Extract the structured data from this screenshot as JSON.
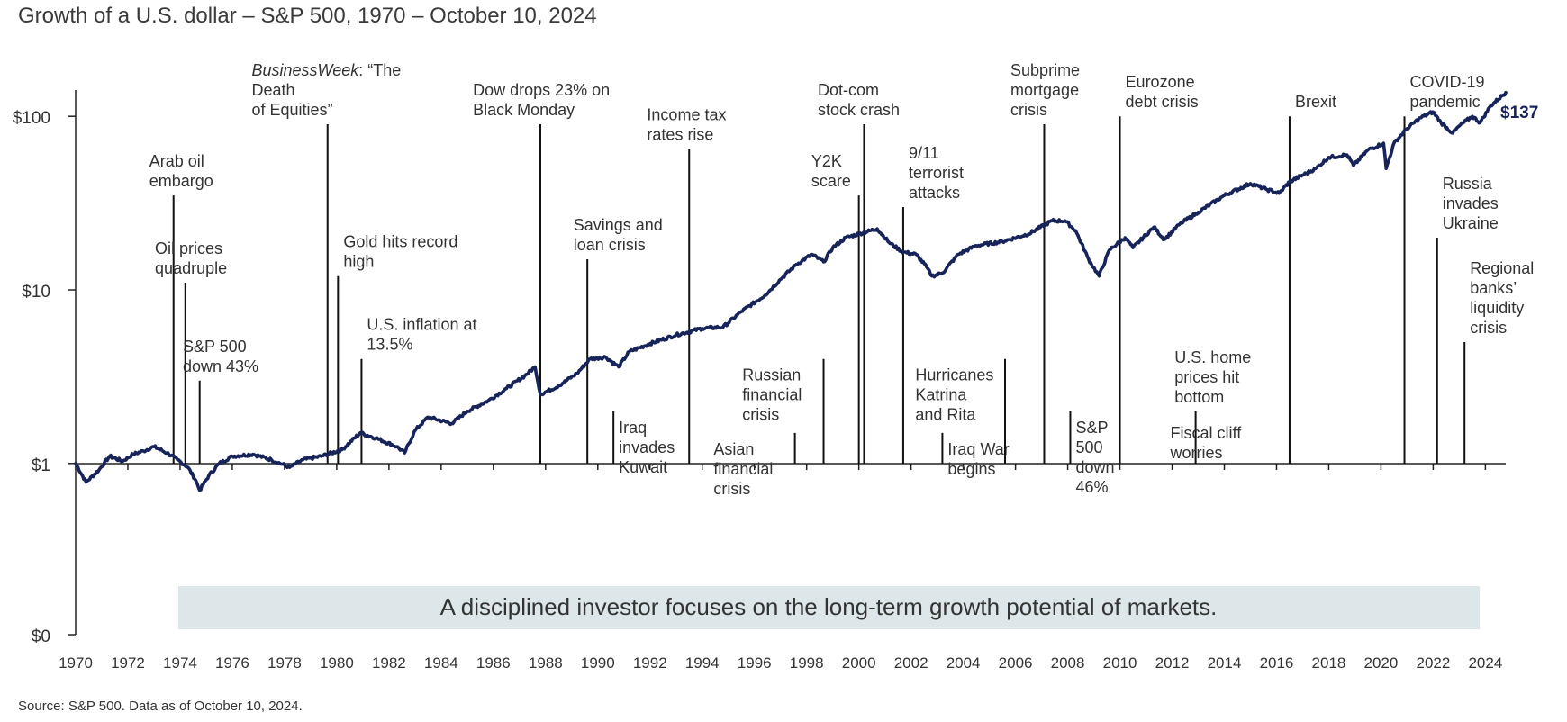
{
  "title": "Growth of a U.S. dollar –  S&P 500, 1970 – October 10, 2024",
  "source": "Source: S&P 500. Data as of October 10, 2024.",
  "colors": {
    "line": "#17245a",
    "axis": "#222222",
    "banner_bg": "#dde6e9",
    "text": "#333333"
  },
  "chart_data": {
    "type": "line",
    "title": "Growth of a U.S. dollar –  S&P 500, 1970 – October 10, 2024",
    "xlabel": "",
    "ylabel": "",
    "y_scale": "log",
    "xlim": [
      1970,
      2024.78
    ],
    "y_tick_labels": [
      {
        "value": 100,
        "label": "$100"
      },
      {
        "value": 10,
        "label": "$10"
      },
      {
        "value": 1,
        "label": "$1"
      },
      {
        "value": 0.1,
        "label": "$0"
      }
    ],
    "x_tick_labels": [
      "1970",
      "1972",
      "1974",
      "1976",
      "1978",
      "1980",
      "1982",
      "1984",
      "1986",
      "1988",
      "1990",
      "1992",
      "1994",
      "1996",
      "1998",
      "2000",
      "2002",
      "2004",
      "2006",
      "2008",
      "2010",
      "2012",
      "2014",
      "2016",
      "2018",
      "2020",
      "2022",
      "2024"
    ],
    "grid": false,
    "legend": "none",
    "end_label": "$137",
    "banner": "A disciplined investor focuses on the long-term growth potential of markets.",
    "series": [
      {
        "values": [
          [
            1970.0,
            1.0
          ],
          [
            1970.4,
            0.78
          ],
          [
            1970.9,
            0.92
          ],
          [
            1971.3,
            1.1
          ],
          [
            1971.8,
            1.03
          ],
          [
            1972.2,
            1.13
          ],
          [
            1972.6,
            1.18
          ],
          [
            1973.0,
            1.25
          ],
          [
            1973.5,
            1.15
          ],
          [
            1973.9,
            1.05
          ],
          [
            1974.3,
            0.95
          ],
          [
            1974.6,
            0.8
          ],
          [
            1974.75,
            0.7
          ],
          [
            1975.1,
            0.85
          ],
          [
            1975.5,
            1.0
          ],
          [
            1976.0,
            1.1
          ],
          [
            1976.8,
            1.13
          ],
          [
            1977.5,
            1.05
          ],
          [
            1978.2,
            0.95
          ],
          [
            1978.7,
            1.05
          ],
          [
            1979.4,
            1.1
          ],
          [
            1980.2,
            1.2
          ],
          [
            1980.9,
            1.5
          ],
          [
            1981.5,
            1.4
          ],
          [
            1982.3,
            1.25
          ],
          [
            1982.6,
            1.15
          ],
          [
            1983.0,
            1.55
          ],
          [
            1983.5,
            1.85
          ],
          [
            1984.4,
            1.7
          ],
          [
            1985.0,
            2.0
          ],
          [
            1985.8,
            2.3
          ],
          [
            1986.5,
            2.7
          ],
          [
            1987.2,
            3.2
          ],
          [
            1987.6,
            3.6
          ],
          [
            1987.8,
            2.5
          ],
          [
            1988.5,
            2.8
          ],
          [
            1989.2,
            3.3
          ],
          [
            1989.7,
            4.0
          ],
          [
            1990.3,
            4.1
          ],
          [
            1990.8,
            3.6
          ],
          [
            1991.2,
            4.4
          ],
          [
            1992.0,
            4.9
          ],
          [
            1993.0,
            5.5
          ],
          [
            1994.0,
            6.0
          ],
          [
            1994.8,
            6.1
          ],
          [
            1995.5,
            7.5
          ],
          [
            1996.4,
            9.3
          ],
          [
            1997.0,
            11.5
          ],
          [
            1997.6,
            14.0
          ],
          [
            1998.2,
            16.0
          ],
          [
            1998.65,
            14.5
          ],
          [
            1999.0,
            17.5
          ],
          [
            1999.5,
            20.0
          ],
          [
            2000.0,
            21.0
          ],
          [
            2000.7,
            22.5
          ],
          [
            2001.2,
            18.5
          ],
          [
            2001.7,
            16.5
          ],
          [
            2002.2,
            16.0
          ],
          [
            2002.6,
            13.5
          ],
          [
            2002.8,
            12.0
          ],
          [
            2003.2,
            12.5
          ],
          [
            2003.8,
            16.0
          ],
          [
            2004.5,
            18.0
          ],
          [
            2005.5,
            19.0
          ],
          [
            2006.5,
            21.0
          ],
          [
            2007.4,
            25.0
          ],
          [
            2007.9,
            25.0
          ],
          [
            2008.3,
            22.0
          ],
          [
            2008.8,
            15.0
          ],
          [
            2009.2,
            12.0
          ],
          [
            2009.6,
            17.0
          ],
          [
            2010.2,
            20.0
          ],
          [
            2010.5,
            17.5
          ],
          [
            2011.3,
            23.0
          ],
          [
            2011.7,
            19.5
          ],
          [
            2012.3,
            24.0
          ],
          [
            2013.0,
            28.0
          ],
          [
            2014.0,
            35.0
          ],
          [
            2015.0,
            41.0
          ],
          [
            2015.6,
            38.0
          ],
          [
            2016.1,
            36.0
          ],
          [
            2016.5,
            42.0
          ],
          [
            2017.5,
            50.0
          ],
          [
            2018.0,
            58.0
          ],
          [
            2018.7,
            60.0
          ],
          [
            2018.95,
            52.0
          ],
          [
            2019.5,
            64.0
          ],
          [
            2020.1,
            70.0
          ],
          [
            2020.2,
            50.0
          ],
          [
            2020.5,
            70.0
          ],
          [
            2021.0,
            85.0
          ],
          [
            2021.5,
            98.0
          ],
          [
            2021.99,
            106.0
          ],
          [
            2022.3,
            92.0
          ],
          [
            2022.75,
            80.0
          ],
          [
            2023.0,
            88.0
          ],
          [
            2023.5,
            100.0
          ],
          [
            2023.8,
            92.0
          ],
          [
            2024.2,
            115.0
          ],
          [
            2024.78,
            137.0
          ]
        ]
      }
    ],
    "events": [
      {
        "year": 1973.75,
        "label_lines": [
          "Arab oil",
          "embargo"
        ],
        "pos": "above",
        "text_pct": 0.36,
        "top": 35
      },
      {
        "year": 1974.2,
        "label_lines": [
          "Oil prices",
          "quadruple"
        ],
        "pos": "above",
        "text_pct": 0.36,
        "top": 11
      },
      {
        "year": 1974.75,
        "label_lines": [
          "S&P 500",
          "down 43%"
        ],
        "pos": "above",
        "text_pct": 0.25,
        "top": 3
      },
      {
        "year": 1979.65,
        "label_lines": [
          "BusinessWeek: “The",
          "Death",
          "of Equities”"
        ],
        "pos": "above",
        "text_pct": 0.5,
        "top": 90,
        "italic_prefix": "BusinessWeek"
      },
      {
        "year": 1980.05,
        "label_lines": [
          "Gold hits record",
          "high"
        ],
        "pos": "above",
        "text_pct": 0.0,
        "top": 12
      },
      {
        "year": 1980.95,
        "label_lines": [
          "U.S. inflation at",
          "13.5%"
        ],
        "pos": "above",
        "text_pct": 0.0,
        "top": 4
      },
      {
        "year": 1987.8,
        "label_lines": [
          "Dow drops 23% on",
          "Black Monday"
        ],
        "pos": "above",
        "text_pct": 0.5,
        "top": 90
      },
      {
        "year": 1989.6,
        "label_lines": [
          "Savings and",
          "loan crisis"
        ],
        "pos": "above",
        "text_pct": 0.15,
        "top": 15
      },
      {
        "year": 1990.6,
        "label_lines": [
          "Iraq",
          "invades",
          "Kuwait"
        ],
        "pos": "below",
        "text_pct": 0.0,
        "top": 2
      },
      {
        "year": 1993.5,
        "label_lines": [
          "Income tax",
          "rates rise"
        ],
        "pos": "above",
        "text_pct": 0.5,
        "top": 65
      },
      {
        "year": 1997.55,
        "label_lines": [
          "Asian",
          "financial",
          "crisis"
        ],
        "pos": "below",
        "text_pct": 1.0,
        "top": 1.5
      },
      {
        "year": 1998.65,
        "label_lines": [
          "Russian",
          "financial",
          "crisis"
        ],
        "pos": "below",
        "text_pct": 1.0,
        "top": 4
      },
      {
        "year": 2000.0,
        "label_lines": [
          "Y2K",
          "scare"
        ],
        "pos": "above",
        "text_pct": 1.0,
        "top": 35
      },
      {
        "year": 2000.2,
        "label_lines": [
          "Dot-com",
          "stock crash"
        ],
        "pos": "above",
        "text_pct": 0.5,
        "top": 90
      },
      {
        "year": 2001.7,
        "label_lines": [
          "9/11",
          "terrorist",
          "attacks"
        ],
        "pos": "above",
        "text_pct": 0.0,
        "top": 30
      },
      {
        "year": 2003.2,
        "label_lines": [
          "Iraq War",
          "begins"
        ],
        "pos": "below",
        "text_pct": 0.0,
        "top": 1.5
      },
      {
        "year": 2005.6,
        "label_lines": [
          "Hurricanes",
          "Katrina",
          "and Rita"
        ],
        "pos": "below",
        "text_pct": 1.0,
        "top": 4
      },
      {
        "year": 2007.1,
        "label_lines": [
          "Subprime",
          "mortgage",
          "crisis"
        ],
        "pos": "above",
        "text_pct": 0.5,
        "top": 90
      },
      {
        "year": 2008.1,
        "label_lines": [
          "S&P",
          "500",
          "down",
          "46%"
        ],
        "pos": "below",
        "text_pct": 0.0,
        "top": 2
      },
      {
        "year": 2010.0,
        "label_lines": [
          "Eurozone",
          "debt crisis"
        ],
        "pos": "above",
        "text_pct": 0.0,
        "top": 100
      },
      {
        "year": 2012.9,
        "label_lines": [
          "U.S. home",
          "prices hit",
          "bottom"
        ],
        "pos": "above",
        "text_pct": 0.25,
        "top": 2
      },
      {
        "year": 2012.9,
        "label_lines": [
          "Fiscal cliff",
          "worries"
        ],
        "pos": "below",
        "text_pct": 0.25,
        "top": 2,
        "noline": true
      },
      {
        "year": 2016.5,
        "label_lines": [
          "Brexit"
        ],
        "pos": "above",
        "text_pct": 0.0,
        "top": 100
      },
      {
        "year": 2020.9,
        "label_lines": [
          "COVID-19",
          "pandemic"
        ],
        "pos": "above",
        "text_pct": 0.0,
        "top": 100
      },
      {
        "year": 2022.15,
        "label_lines": [
          "Russia",
          "invades",
          "Ukraine"
        ],
        "pos": "above",
        "text_pct": 0.0,
        "top": 20
      },
      {
        "year": 2023.2,
        "label_lines": [
          "Regional",
          "banks’",
          "liquidity",
          "crisis"
        ],
        "pos": "above",
        "text_pct": 0.0,
        "top": 5
      }
    ]
  }
}
